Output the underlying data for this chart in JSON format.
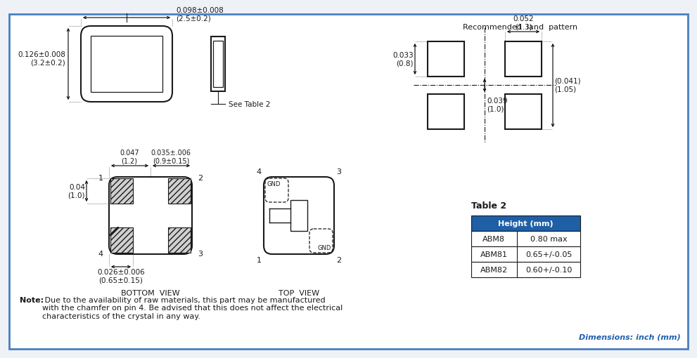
{
  "bg_color": "#eef2f7",
  "border_color": "#4a7fc1",
  "title_color": "#2060b0",
  "table2_title": "Table 2",
  "table2_header": "Height (mm)",
  "table2_header_bg": "#1f5fa6",
  "table2_header_fg": "#ffffff",
  "table2_rows": [
    [
      "ABM8",
      "0.80 max"
    ],
    [
      "ABM81",
      "0.65+/-0.05"
    ],
    [
      "ABM82",
      "0.60+/-0.10"
    ]
  ],
  "note_bold": "Note:",
  "note_text": " Due to the availability of raw materials, this part may be manufactured\nwith the chamfer on pin 4. Be advised that this does not affect the electrical\ncharacteristics of the crystal in any way.",
  "dim_text": "Dimensions: inch (mm)",
  "land_title": "Recommended  land  pattern",
  "dim_033": "0.033\n(0.8)",
  "dim_052": "0.052\n(1.3)",
  "dim_041": "(0.041)\n(1.05)",
  "dim_039": "0.039\n(1.0)",
  "top_width_label": "0.098±0.008\n(2.5±0.2)",
  "top_height_label": "0.126±0.008\n(3.2±0.2)",
  "side_height_label": "See Table 2",
  "bot_pad_w_label": "0.047\n(1.2)",
  "bot_pad_h_label": "0.035±.006\n(0.9±0.15)",
  "bot_height_label": "0.04\n(1.0)",
  "bot_width_label": "0.026±0.006\n(0.65±0.15)",
  "bottom_view_label": "BOTTOM  VIEW",
  "top_view_label": "TOP  VIEW",
  "line_color": "#1a1a1a",
  "text_color": "#1a1a1a",
  "dark_color": "#333333"
}
